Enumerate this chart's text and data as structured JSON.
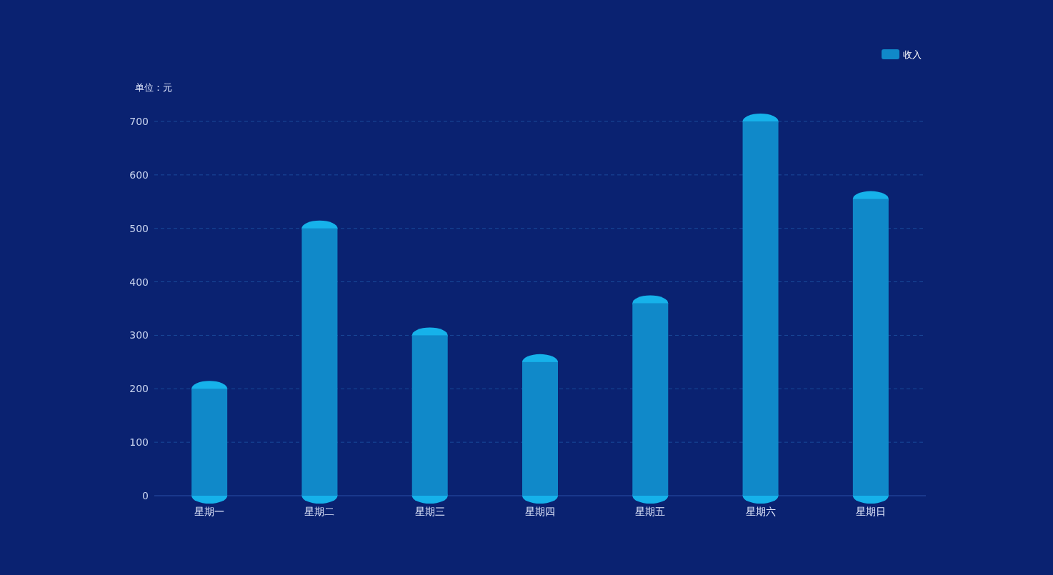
{
  "chart_data": {
    "type": "bar",
    "ylabel": "单位：元",
    "categories": [
      "星期一",
      "星期二",
      "星期三",
      "星期四",
      "星期五",
      "星期六",
      "星期日"
    ],
    "series": [
      {
        "name": "收入",
        "color": "#1089c9",
        "values": [
          200,
          500,
          300,
          250,
          360,
          700,
          555
        ]
      }
    ],
    "ylim": [
      0,
      700
    ],
    "yticks": [
      0,
      100,
      200,
      300,
      400,
      500,
      600,
      700
    ],
    "grid": "y",
    "legend": "top right"
  }
}
